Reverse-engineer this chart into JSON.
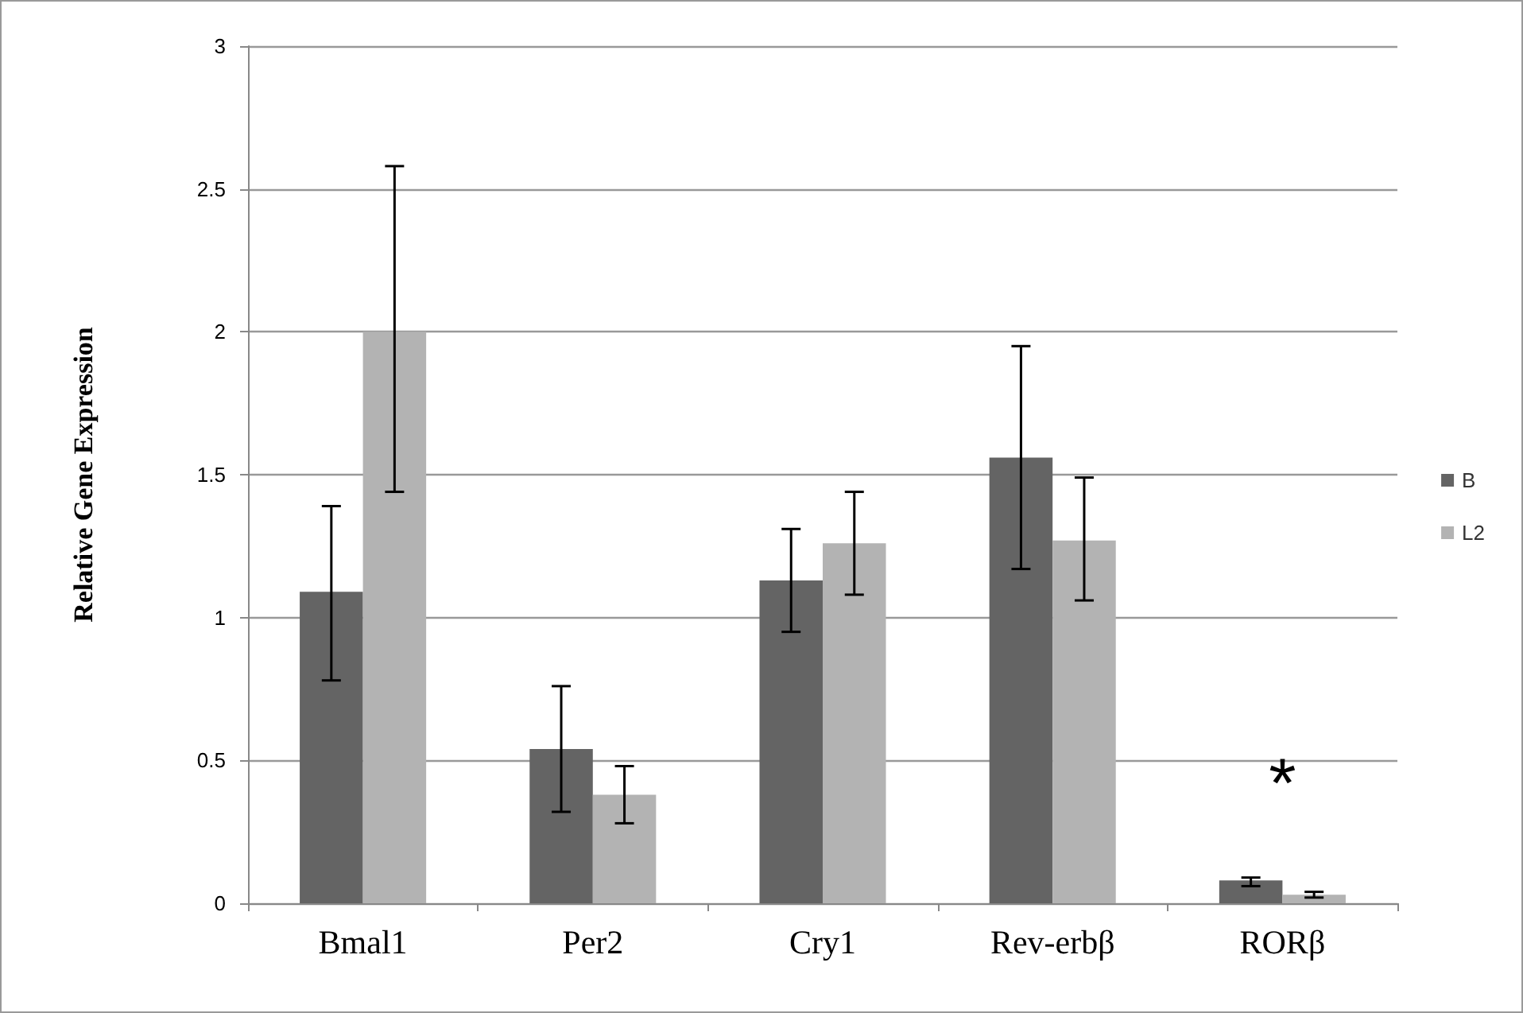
{
  "chart_data": {
    "type": "bar",
    "ylabel": "Relative Gene Expression",
    "categories": [
      "Bmal1",
      "Per2",
      "Cry1",
      "Rev-erbβ",
      "RORβ"
    ],
    "series": [
      {
        "name": "B",
        "color": "#646464",
        "values": [
          1.09,
          0.54,
          1.13,
          1.56,
          0.08
        ],
        "errors": [
          [
            0.78,
            1.39
          ],
          [
            0.32,
            0.76
          ],
          [
            0.95,
            1.31
          ],
          [
            1.17,
            1.95
          ],
          [
            0.06,
            0.09
          ]
        ]
      },
      {
        "name": "L2",
        "color": "#b3b3b3",
        "values": [
          2.0,
          0.38,
          1.26,
          1.27,
          0.03
        ],
        "errors": [
          [
            1.44,
            2.58
          ],
          [
            0.28,
            0.48
          ],
          [
            1.08,
            1.44
          ],
          [
            1.06,
            1.49
          ],
          [
            0.02,
            0.04
          ]
        ]
      }
    ],
    "ylim": [
      0,
      3
    ],
    "yticks": [
      0,
      0.5,
      1,
      1.5,
      2,
      2.5,
      3
    ],
    "grid": "y",
    "legend": "right",
    "annotations": [
      "*"
    ]
  }
}
